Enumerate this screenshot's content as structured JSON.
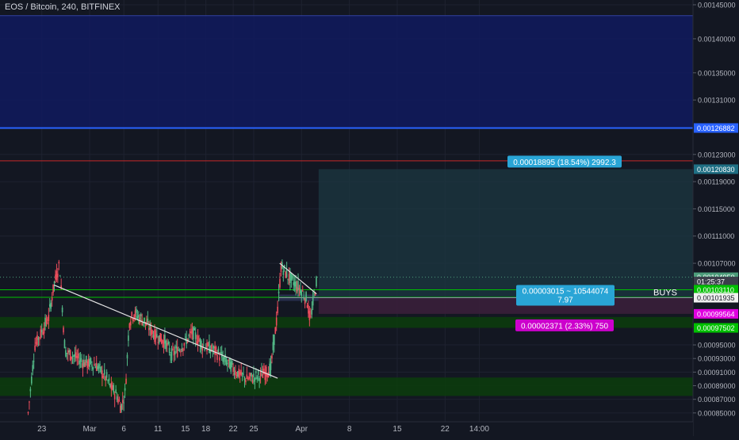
{
  "header": {
    "title": "EOS / Bitcoin, 240, BITFINEX"
  },
  "colors": {
    "background": "#131722",
    "up": "#53b987",
    "down": "#eb4d5c",
    "grid": "#1e2230",
    "axis_text": "#b2b5be",
    "trendline": "#e6e6e6",
    "blue_zone": "#111a5e",
    "green_zone": "#0c3d0c",
    "target_box": "#1c3640"
  },
  "chart_data": {
    "type": "candlestick",
    "title": "EOS / Bitcoin, 240, BITFINEX",
    "ylim": [
      0.000837,
      0.001457
    ],
    "x_range_days": [
      0,
      54
    ],
    "y_ticks": [
      "0.00145000",
      "0.00140000",
      "0.00135000",
      "0.00131000",
      "0.00123000",
      "0.00119000",
      "0.00115000",
      "0.00111000",
      "0.00107000",
      "0.00095000",
      "0.00093000",
      "0.00091000",
      "0.00089000",
      "0.00087000",
      "0.00085000"
    ],
    "x_ticks": [
      {
        "label": "23",
        "day": 2
      },
      {
        "label": "Mar",
        "day": 9
      },
      {
        "label": "6",
        "day": 14
      },
      {
        "label": "11",
        "day": 19
      },
      {
        "label": "15",
        "day": 23
      },
      {
        "label": "18",
        "day": 26
      },
      {
        "label": "22",
        "day": 30
      },
      {
        "label": "25",
        "day": 33
      },
      {
        "label": "Apr",
        "day": 40
      },
      {
        "label": "8",
        "day": 47
      },
      {
        "label": "15",
        "day": 54
      },
      {
        "label": "22",
        "day": 61
      },
      {
        "label": "14:00",
        "day": 66
      }
    ],
    "price_tags": [
      {
        "label": "0.00126882",
        "value": 0.00126882,
        "color": "#2962ff"
      },
      {
        "label": "0.00120830",
        "value": 0.0012083,
        "color": "#1f6f84"
      },
      {
        "label": "0.00104950",
        "value": 0.0010495,
        "color": "#4c9c7a"
      },
      {
        "label": "01:25:37",
        "value": 0.0010432,
        "color": "#3a3e4a"
      },
      {
        "label": "0.00103110",
        "value": 0.0010311,
        "color": "#00c000"
      },
      {
        "label": "0.00101935",
        "value": 0.00101935,
        "color": "#f0f0f0"
      },
      {
        "label": "0.00099564",
        "value": 0.00099564,
        "color": "#e000e0"
      },
      {
        "label": "0.00097502",
        "value": 0.00097502,
        "color": "#00c000"
      }
    ],
    "zones": [
      {
        "name": "blue-resistance-zone",
        "from": 0.00126882,
        "to": 0.001434,
        "color": "#111a5e"
      },
      {
        "name": "green-support-zone-upper",
        "from": 0.00097502,
        "to": 0.000991,
        "color": "#0c3d0c"
      },
      {
        "name": "green-support-zone-lower",
        "from": 0.000875,
        "to": 0.000902,
        "color": "#0c3d0c"
      }
    ],
    "levels": [
      {
        "name": "red-resistance-line",
        "value": 0.0012205,
        "color": "#c62828"
      },
      {
        "name": "blue-level-line",
        "value": 0.00126882,
        "color": "#2962ff"
      },
      {
        "name": "green-level-upper",
        "value": 0.0010311,
        "color": "#00c000"
      },
      {
        "name": "green-level-lower",
        "value": 0.00102,
        "color": "#00c000"
      }
    ],
    "trendlines": [
      {
        "name": "main-descending-trendline",
        "p1": [
          3.8,
          0.001038
        ],
        "p2": [
          36.5,
          0.000901
        ]
      },
      {
        "name": "flag-trendline",
        "p1": [
          36.8,
          0.00107
        ],
        "p2": [
          42.2,
          0.001025
        ]
      }
    ],
    "position": {
      "start_day": 42.5,
      "end_day": 68,
      "target": 0.0012083,
      "entry": 0.00101935,
      "stop": 0.00099564,
      "profit_label": "0.00018895 (18.54%) 2992.3",
      "entry_label_line1": "0.00003015 ~ 10544074",
      "entry_label_line2": "7.97",
      "loss_label": "0.00002371 (2.33%) 750"
    },
    "annotation": "BUYS",
    "ohlc_keypoints": [
      [
        0,
        0.00085
      ],
      [
        1,
        0.00095
      ],
      [
        2,
        0.00097
      ],
      [
        3,
        0.00099
      ],
      [
        3.8,
        0.00104
      ],
      [
        4.6,
        0.00107
      ],
      [
        5.4,
        0.00094
      ],
      [
        6.5,
        0.000935
      ],
      [
        8,
        0.000925
      ],
      [
        10,
        0.00092
      ],
      [
        11.5,
        0.0009
      ],
      [
        12,
        0.00089
      ],
      [
        13,
        0.000875
      ],
      [
        13.6,
        0.000858
      ],
      [
        14.2,
        0.00088
      ],
      [
        14.8,
        0.000985
      ],
      [
        15.5,
        0.000997
      ],
      [
        17,
        0.000985
      ],
      [
        18.5,
        0.000965
      ],
      [
        20,
        0.000955
      ],
      [
        21,
        0.000935
      ],
      [
        22.5,
        0.000948
      ],
      [
        24,
        0.000968
      ],
      [
        25.5,
        0.00095
      ],
      [
        27.5,
        0.00094
      ],
      [
        29,
        0.000925
      ],
      [
        30.5,
        0.00091
      ],
      [
        32,
        0.0009
      ],
      [
        34,
        0.000905
      ],
      [
        35.5,
        0.000915
      ],
      [
        36.5,
        0.001
      ],
      [
        37,
        0.001065
      ],
      [
        38.5,
        0.001045
      ],
      [
        40,
        0.00103
      ],
      [
        40.8,
        0.001015
      ],
      [
        41.3,
        0.000985
      ],
      [
        41.8,
        0.00102
      ],
      [
        42.3,
        0.00105
      ]
    ]
  }
}
